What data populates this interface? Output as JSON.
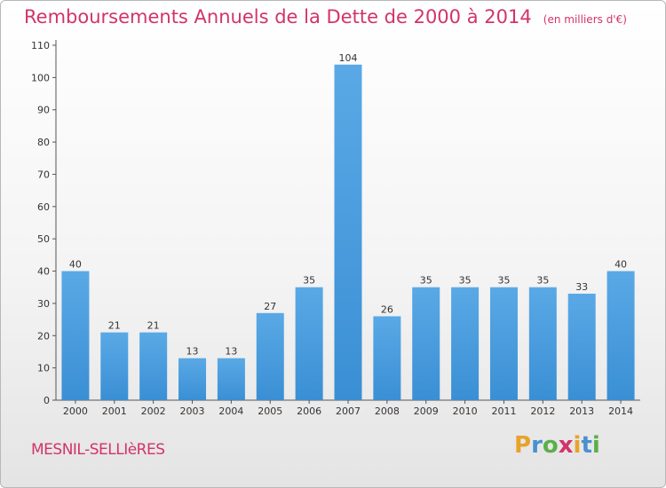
{
  "chart_data": {
    "type": "bar",
    "title": "Remboursements Annuels de la Dette de 2000 à 2014",
    "unit_note": "(en milliers d'€)",
    "categories": [
      "2000",
      "2001",
      "2002",
      "2003",
      "2004",
      "2005",
      "2006",
      "2007",
      "2008",
      "2009",
      "2010",
      "2011",
      "2012",
      "2013",
      "2014"
    ],
    "values": [
      40,
      21,
      21,
      13,
      13,
      27,
      35,
      104,
      26,
      35,
      35,
      35,
      35,
      33,
      40
    ],
    "ylim": [
      0,
      110
    ],
    "yticks": [
      0,
      10,
      20,
      30,
      40,
      50,
      60,
      70,
      80,
      90,
      100,
      110
    ],
    "grid": false,
    "bar_color": "#3a8fd4"
  },
  "footer": {
    "commune": "MESNIL-SELLIèRES",
    "logo_letters": [
      "P",
      "r",
      "o",
      "x",
      "i",
      "t",
      "i"
    ],
    "logo_colors": [
      "#e8a32a",
      "#4a90d0",
      "#5ab04a",
      "#d2336b",
      "#e8a32a",
      "#4a90d0",
      "#5ab04a"
    ]
  },
  "accent_color": "#d2336b"
}
